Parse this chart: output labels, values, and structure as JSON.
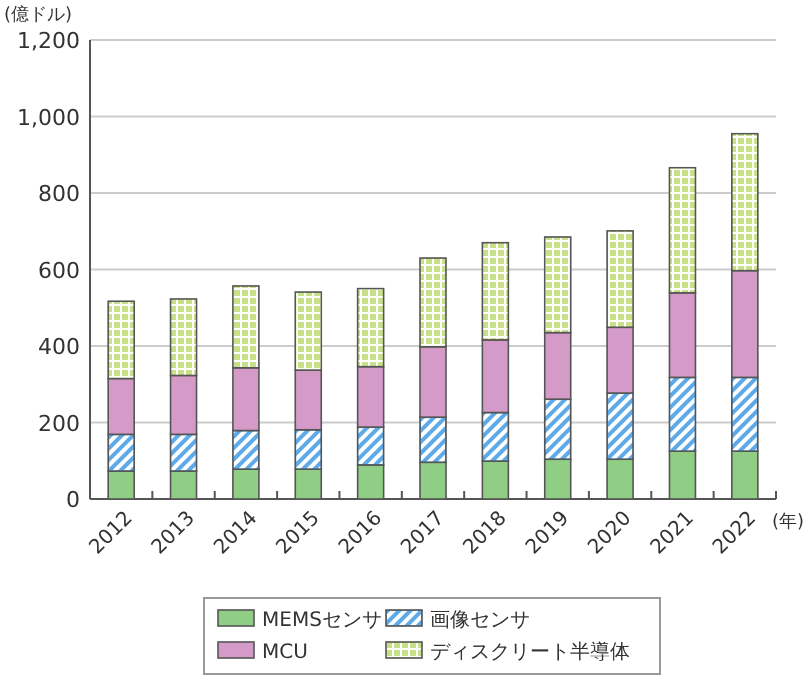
{
  "chart_data": {
    "type": "bar",
    "stacked": true,
    "ylabel": "(億ドル)",
    "xlabel": "(年)",
    "categories": [
      "2012",
      "2013",
      "2014",
      "2015",
      "2016",
      "2017",
      "2018",
      "2019",
      "2020",
      "2021",
      "2022"
    ],
    "series": [
      {
        "name": "MEMSセンサ",
        "color": "#8fce84",
        "values": [
          73,
          73,
          78,
          78,
          89,
          96,
          99,
          104,
          104,
          125,
          125
        ]
      },
      {
        "name": "画像センサ",
        "color": "#5ea9e8",
        "values": [
          96,
          96,
          101,
          103,
          99,
          118,
          127,
          157,
          173,
          193,
          193
        ]
      },
      {
        "name": "MCU",
        "color": "#d49ac8",
        "values": [
          146,
          154,
          164,
          156,
          158,
          184,
          190,
          174,
          172,
          221,
          279
        ]
      },
      {
        "name": "ディスクリート半導体",
        "color": "#c8e08a",
        "values": [
          202,
          200,
          214,
          204,
          204,
          232,
          254,
          250,
          252,
          327,
          358
        ]
      }
    ],
    "ylim": [
      0,
      1200
    ],
    "yticks": [
      0,
      200,
      400,
      600,
      800,
      {
        "value": 1000,
        "label": "1,000"
      },
      {
        "value": 1200,
        "label": "1,200"
      }
    ],
    "grid": "y",
    "legend": "bottom"
  }
}
